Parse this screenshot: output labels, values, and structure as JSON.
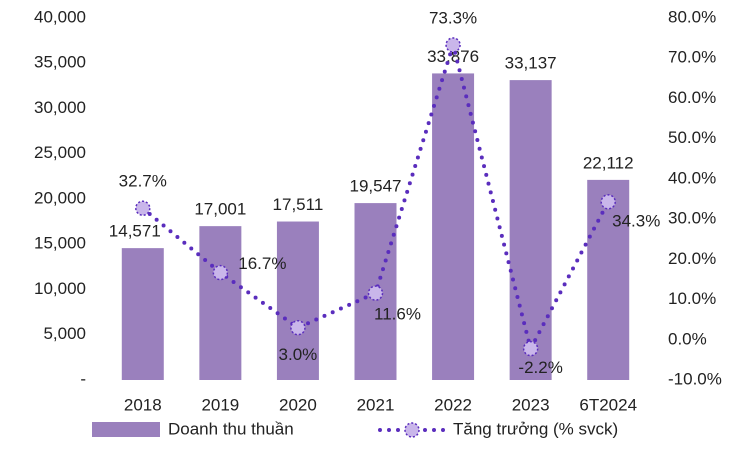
{
  "chart_data": {
    "type": "bar",
    "categories": [
      "2018",
      "2019",
      "2020",
      "2021",
      "2022",
      "2023",
      "6T2024"
    ],
    "series": [
      {
        "name": "Doanh thu thuần",
        "type": "bar",
        "color": "#9a80bd",
        "values": [
          14571,
          17001,
          17511,
          19547,
          33876,
          33137,
          22112
        ],
        "value_labels": [
          "14,571",
          "17,001",
          "17,511",
          "19,547",
          "33,876",
          "33,137",
          "22,112"
        ]
      },
      {
        "name": "Tăng trưởng (% svck)",
        "type": "line",
        "axis": "y2",
        "color": "#5a2dbd",
        "values": [
          32.7,
          16.7,
          3.0,
          11.6,
          73.3,
          -2.2,
          34.3
        ],
        "value_labels": [
          "32.7%",
          "16.7%",
          "3.0%",
          "11.6%",
          "73.3%",
          "-2.2%",
          "34.3%"
        ]
      }
    ],
    "ylim": [
      0,
      40000
    ],
    "yticks": [
      {
        "value": 0,
        "label": "-"
      },
      {
        "value": 5000,
        "label": "5,000"
      },
      {
        "value": 10000,
        "label": "10,000"
      },
      {
        "value": 15000,
        "label": "15,000"
      },
      {
        "value": 20000,
        "label": "20,000"
      },
      {
        "value": 25000,
        "label": "25,000"
      },
      {
        "value": 30000,
        "label": "30,000"
      },
      {
        "value": 35000,
        "label": "35,000"
      },
      {
        "value": 40000,
        "label": "40,000"
      }
    ],
    "y2lim": [
      -10,
      80
    ],
    "y2ticks": [
      {
        "value": -10,
        "label": "-10.0%"
      },
      {
        "value": 0,
        "label": "0.0%"
      },
      {
        "value": 10,
        "label": "10.0%"
      },
      {
        "value": 20,
        "label": "20.0%"
      },
      {
        "value": 30,
        "label": "30.0%"
      },
      {
        "value": 40,
        "label": "40.0%"
      },
      {
        "value": 50,
        "label": "50.0%"
      },
      {
        "value": 60,
        "label": "60.0%"
      },
      {
        "value": 70,
        "label": "70.0%"
      },
      {
        "value": 80,
        "label": "80.0%"
      }
    ],
    "legend": "bottom"
  }
}
